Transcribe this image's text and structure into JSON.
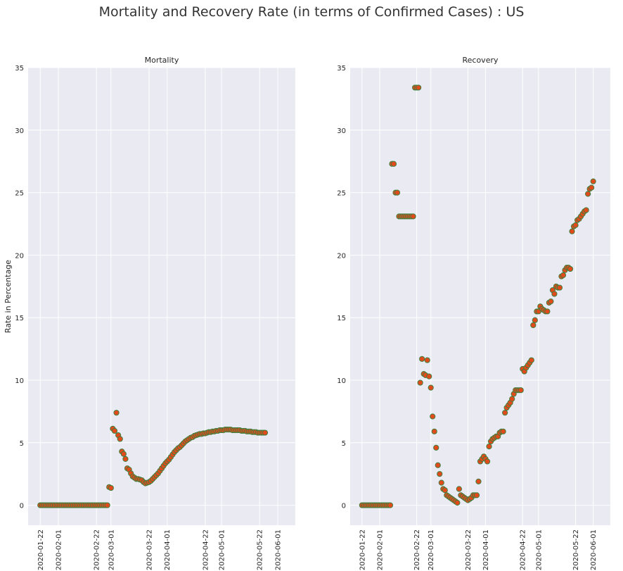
{
  "suptitle": "Mortality and Recovery Rate (in terms of Confirmed Cases) : US",
  "colors": {
    "panel_bg": "#eaeaf2",
    "grid": "#ffffff",
    "marker_fill": "#e24a1c",
    "marker_edge": "#3f7f3f"
  },
  "chart_data": [
    {
      "type": "scatter",
      "title": "Mortality",
      "ylabel": "Rate in Percentage",
      "xlabel": "",
      "ylim": [
        -1.6,
        35
      ],
      "yticks": [
        0,
        5,
        10,
        15,
        20,
        25,
        30,
        35
      ],
      "xticks": [
        "2020-01-22",
        "2020-02-01",
        "2020-02-22",
        "2020-03-01",
        "2020-03-22",
        "2020-04-01",
        "2020-04-22",
        "2020-05-01",
        "2020-05-22",
        "2020-06-01"
      ],
      "grid": true,
      "x_start": "2020-01-22",
      "x_end": "2020-06-04",
      "values": [
        0,
        0,
        0,
        0,
        0,
        0,
        0,
        0,
        0,
        0,
        0,
        0,
        0,
        0,
        0,
        0,
        0,
        0,
        0,
        0,
        0,
        0,
        0,
        0,
        0,
        0,
        0,
        0,
        0,
        0,
        0,
        0,
        0,
        0,
        0,
        0,
        0,
        0,
        1.45,
        1.38,
        6.12,
        5.95,
        7.4,
        5.6,
        5.3,
        4.3,
        4.1,
        3.7,
        2.95,
        2.85,
        2.55,
        2.3,
        2.2,
        2.1,
        2.1,
        2.05,
        2.0,
        1.85,
        1.75,
        1.8,
        1.85,
        1.95,
        2.1,
        2.25,
        2.4,
        2.55,
        2.75,
        2.95,
        3.15,
        3.35,
        3.5,
        3.65,
        3.85,
        4.05,
        4.25,
        4.4,
        4.55,
        4.65,
        4.8,
        4.95,
        5.1,
        5.2,
        5.3,
        5.4,
        5.45,
        5.55,
        5.6,
        5.65,
        5.7,
        5.7,
        5.75,
        5.75,
        5.8,
        5.85,
        5.85,
        5.9,
        5.9,
        5.95,
        5.95,
        6.0,
        6.0,
        6.0,
        6.05,
        6.05,
        6.05,
        6.05,
        6.0,
        6.0,
        6.0,
        6.0,
        6.0,
        5.95,
        5.95,
        5.95,
        5.9,
        5.9,
        5.9,
        5.85,
        5.85,
        5.85,
        5.8,
        5.8,
        5.8,
        5.8,
        5.8
      ]
    },
    {
      "type": "scatter",
      "title": "Recovery",
      "ylabel": "",
      "xlabel": "",
      "ylim": [
        -1.6,
        35
      ],
      "yticks": [
        0,
        5,
        10,
        15,
        20,
        25,
        30,
        35
      ],
      "xticks": [
        "2020-01-22",
        "2020-02-01",
        "2020-02-22",
        "2020-03-01",
        "2020-03-22",
        "2020-04-01",
        "2020-04-22",
        "2020-05-01",
        "2020-05-22",
        "2020-06-01"
      ],
      "grid": true,
      "x_start": "2020-01-22",
      "x_end": "2020-06-04",
      "values": [
        0,
        0,
        0,
        0,
        0,
        0,
        0,
        0,
        0,
        0,
        0,
        0,
        0,
        0,
        0,
        0,
        0,
        27.3,
        27.3,
        25.0,
        25.0,
        23.1,
        23.1,
        23.1,
        23.1,
        23.1,
        23.1,
        23.1,
        23.1,
        23.1,
        33.4,
        33.4,
        33.4,
        9.8,
        11.7,
        10.5,
        10.4,
        11.6,
        10.3,
        9.4,
        7.1,
        5.9,
        4.6,
        3.2,
        2.5,
        1.8,
        1.3,
        1.2,
        0.8,
        0.7,
        0.6,
        0.5,
        0.4,
        0.3,
        0.2,
        1.3,
        0.8,
        0.7,
        0.6,
        0.5,
        0.4,
        0.5,
        0.6,
        0.8,
        0.8,
        0.8,
        1.9,
        3.5,
        3.7,
        3.9,
        3.7,
        3.5,
        4.7,
        5.1,
        5.3,
        5.4,
        5.5,
        5.5,
        5.8,
        5.9,
        5.9,
        7.4,
        7.8,
        8.0,
        8.2,
        8.5,
        8.9,
        9.2,
        9.2,
        9.2,
        9.2,
        10.9,
        10.7,
        11.0,
        11.2,
        11.4,
        11.6,
        14.4,
        14.8,
        15.5,
        15.5,
        15.9,
        15.7,
        15.6,
        15.5,
        15.5,
        16.2,
        16.3,
        17.2,
        16.9,
        17.5,
        17.4,
        17.4,
        18.3,
        18.4,
        18.8,
        19.0,
        19.0,
        18.9,
        21.9,
        22.3,
        22.4,
        22.8,
        22.9,
        23.1,
        23.3,
        23.5,
        23.6,
        24.9,
        25.3,
        25.4,
        25.9
      ]
    }
  ]
}
